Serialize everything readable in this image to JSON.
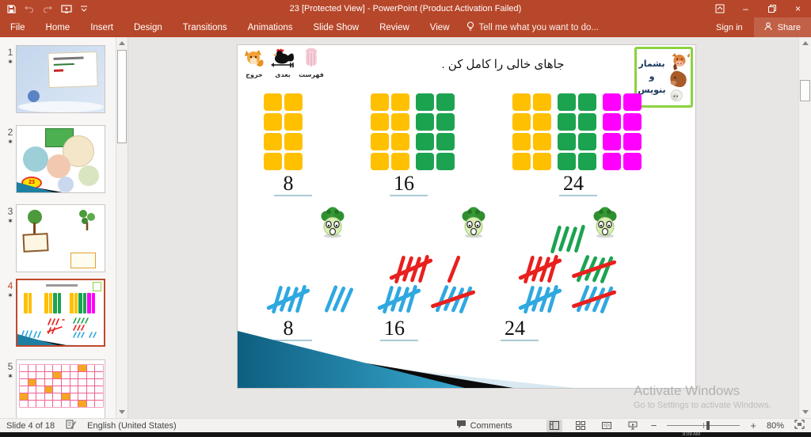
{
  "window": {
    "title": "23 [Protected View] - PowerPoint (Product Activation Failed)"
  },
  "ribbon": {
    "tabs": [
      "File",
      "Home",
      "Insert",
      "Design",
      "Transitions",
      "Animations",
      "Slide Show",
      "Review",
      "View"
    ],
    "tell_me": "Tell me what you want to do...",
    "sign_in": "Sign in",
    "share": "Share"
  },
  "thumbnails": {
    "star": "✶",
    "slides": [
      {
        "number": "1"
      },
      {
        "number": "2",
        "badge": "23"
      },
      {
        "number": "3"
      },
      {
        "number": "4"
      },
      {
        "number": "5"
      }
    ]
  },
  "slide": {
    "nav": [
      {
        "name": "exit",
        "label": "خروج"
      },
      {
        "name": "next",
        "label": "بعدی"
      },
      {
        "name": "index",
        "label": "فهرست"
      }
    ],
    "heading": "جاهای خالی را کامل کن .",
    "badge": {
      "lines": [
        "بشمار",
        "و",
        "بنویس"
      ]
    },
    "block_groups": [
      {
        "value": "8",
        "cols": 2,
        "rows": 4,
        "blocks": [
          "#FFC000"
        ]
      },
      {
        "value": "16",
        "cols": 2,
        "rows": 4,
        "blocks": [
          "#FFC000",
          "#1CA350"
        ]
      },
      {
        "value": "24",
        "cols": 2,
        "rows": 4,
        "blocks": [
          "#FFC000",
          "#1CA350",
          "#FF00FF"
        ]
      }
    ],
    "tally_groups": [
      {
        "value": "8",
        "rows": [
          [
            {
              "n": 4,
              "cross": true,
              "color": "#2FA8E0"
            },
            {
              "n": 3,
              "color": "#2FA8E0"
            }
          ]
        ]
      },
      {
        "value": "16",
        "rows": [
          [
            {
              "n": 4,
              "cross": true,
              "color": "#E8201E"
            },
            {
              "n": 1,
              "color": "#E8201E"
            }
          ],
          [
            {
              "n": 4,
              "cross": true,
              "color": "#2FA8E0"
            },
            {
              "n": 4,
              "cross": true,
              "color": "#2FA8E0",
              "crossColor": "#E8201E"
            }
          ]
        ]
      },
      {
        "value": "24",
        "rows": [
          [
            {
              "n": 4,
              "color": "#1CA350"
            }
          ],
          [
            {
              "n": 4,
              "cross": true,
              "color": "#E8201E"
            },
            {
              "n": 4,
              "cross": true,
              "color": "#1CA350",
              "crossColor": "#E8201E"
            }
          ],
          [
            {
              "n": 4,
              "cross": true,
              "color": "#2FA8E0"
            },
            {
              "n": 4,
              "cross": true,
              "color": "#2FA8E0",
              "crossColor": "#E8201E"
            }
          ]
        ]
      }
    ]
  },
  "watermark": {
    "line1": "Activate Windows",
    "line2": "Go to Settings to activate Windows."
  },
  "status_bar": {
    "slide_indicator": "Slide 4 of 18",
    "language": "English (United States)",
    "comments": "Comments",
    "zoom_level": "80%"
  },
  "taskbar": {
    "clock": "8:09 AM"
  }
}
